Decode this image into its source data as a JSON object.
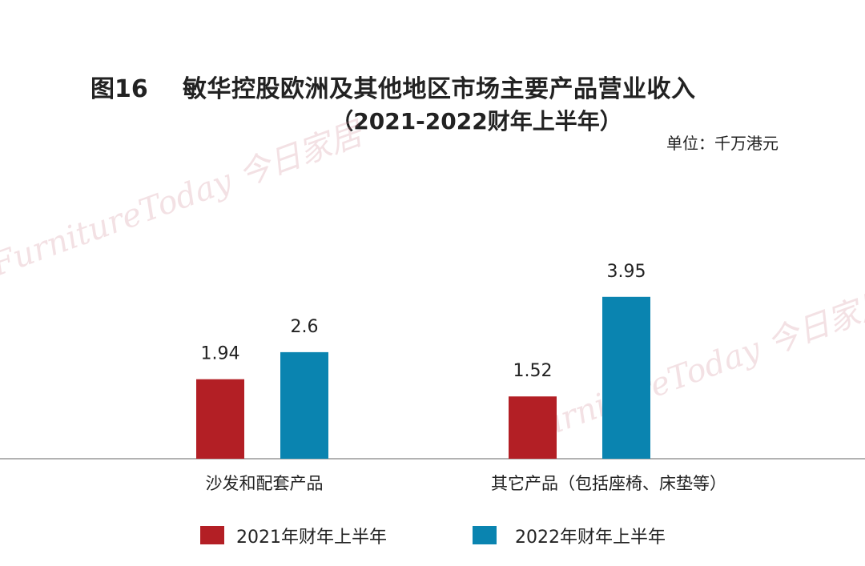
{
  "figure_number": "图16",
  "watermark": "FurnitureToday 今日家居",
  "chart_data": {
    "type": "bar",
    "title": "敏华控股欧洲及其他地区市场主要产品营业收入",
    "subtitle": "（2021-2022财年上半年）",
    "unit": "单位：千万港元",
    "categories": [
      "沙发和配套产品",
      "其它产品（包括座椅、床垫等）"
    ],
    "series": [
      {
        "name": "2021年财年上半年",
        "values": [
          1.94,
          1.52
        ],
        "color": "#B31F25"
      },
      {
        "name": "2022年财年上半年",
        "values": [
          2.6,
          3.95
        ],
        "color": "#0A84B0"
      }
    ],
    "data_labels": [
      [
        "1.94",
        "1.52"
      ],
      [
        "2.6",
        "3.95"
      ]
    ],
    "ylim": [
      0,
      4.2
    ],
    "grid": false,
    "legend": "bottom"
  }
}
